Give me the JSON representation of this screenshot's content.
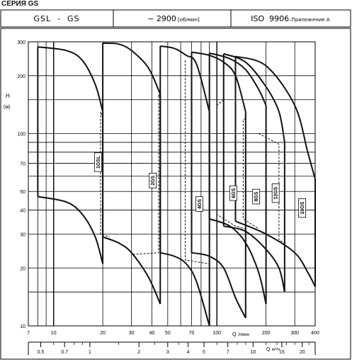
{
  "series_title": "СЕРИЯ GS",
  "header": {
    "model": "GSL  -  GS",
    "speed_prefix": "~ ",
    "speed": "2900",
    "speed_unit": "[об/мин]",
    "standard": "ISO  9906",
    "standard_note": "–Приложение А"
  },
  "chart_data": {
    "type": "line",
    "title": "",
    "ylabel": "H",
    "yunit": "(м)",
    "xlabel": "Q",
    "xunit": "л/мин",
    "x2unit": "м³/ч",
    "y_scale": "log",
    "x_scale": "log",
    "ylim": [
      10,
      300
    ],
    "xlim": [
      7,
      400
    ],
    "x2lim": [
      0.42,
      24
    ],
    "y_ticks": [
      "300",
      "200",
      "100",
      "70",
      "50",
      "40",
      "30",
      "20",
      "10"
    ],
    "y_tick_values": [
      300,
      200,
      100,
      70,
      50,
      40,
      30,
      20,
      10
    ],
    "x_ticks": [
      "7",
      "10",
      "20",
      "30",
      "40",
      "50",
      "70",
      "100",
      "200",
      "300",
      "400"
    ],
    "x_tick_values": [
      7,
      10,
      20,
      30,
      40,
      50,
      70,
      100,
      200,
      300,
      400
    ],
    "x2_ticks": [
      "0.5",
      "0.7",
      "1",
      "2",
      "3",
      "4",
      "5",
      "7",
      "10",
      "15",
      "20"
    ],
    "x2_tick_values": [
      0.5,
      0.7,
      1,
      2,
      3,
      4,
      5,
      7,
      10,
      15,
      20
    ],
    "grid": true,
    "series": [
      {
        "name": "1GSL",
        "upper": [
          [
            8,
            282
          ],
          [
            12,
            270
          ],
          [
            15,
            240
          ],
          [
            18,
            180
          ],
          [
            20,
            130
          ]
        ],
        "lower": [
          [
            8,
            47
          ],
          [
            12,
            44
          ],
          [
            15,
            38
          ],
          [
            18,
            29
          ],
          [
            20,
            21
          ]
        ],
        "qmin": 8,
        "qmax": 20,
        "divider": [
          [
            20,
            120
          ],
          [
            19.4,
            130
          ],
          [
            19.4,
            30
          ],
          [
            22,
            29
          ]
        ],
        "label_q": 18.7,
        "label_h": 71
      },
      {
        "name": "2GS",
        "upper": [
          [
            20,
            295
          ],
          [
            25,
            292
          ],
          [
            30,
            270
          ],
          [
            38,
            220
          ],
          [
            45,
            160
          ]
        ],
        "lower": [
          [
            20,
            29
          ],
          [
            25,
            27
          ],
          [
            30,
            24
          ],
          [
            38,
            18
          ],
          [
            45,
            13
          ]
        ],
        "qmin": 20,
        "qmax": 45,
        "divider": [
          [
            45,
            150
          ],
          [
            44,
            160
          ],
          [
            44,
            24
          ],
          [
            30,
            23.5
          ]
        ],
        "label_q": 40.5,
        "label_h": 57
      },
      {
        "name": "4GS",
        "upper": [
          [
            45,
            285
          ],
          [
            55,
            277
          ],
          [
            65,
            255
          ],
          [
            75,
            230
          ],
          [
            90,
            130
          ]
        ],
        "lower": [
          [
            45,
            24
          ],
          [
            55,
            23
          ],
          [
            65,
            21
          ],
          [
            75,
            17
          ],
          [
            90,
            10
          ]
        ],
        "qmin": 45,
        "qmax": 90,
        "divider": [
          [
            64,
            240
          ],
          [
            64,
            230
          ],
          [
            64,
            22
          ],
          [
            90,
            21
          ]
        ],
        "label_q": 78,
        "label_h": 43
      },
      {
        "name": "6GS",
        "upper": [
          [
            70,
            265
          ],
          [
            90,
            255
          ],
          [
            110,
            235
          ],
          [
            130,
            200
          ],
          [
            150,
            130
          ]
        ],
        "lower": [
          [
            70,
            24
          ],
          [
            90,
            23
          ],
          [
            110,
            20
          ],
          [
            130,
            14
          ],
          [
            150,
            11
          ]
        ],
        "qmin": 70,
        "qmax": 150,
        "divider": [
          [
            110,
            150
          ],
          [
            100,
            140
          ],
          [
            100,
            38
          ],
          [
            130,
            33
          ],
          [
            150,
            32
          ]
        ],
        "label_q": 126,
        "label_h": 49
      },
      {
        "name": "8GS",
        "upper": [
          [
            90,
            262
          ],
          [
            120,
            245
          ],
          [
            150,
            215
          ],
          [
            180,
            170
          ],
          [
            200,
            140
          ]
        ],
        "lower": [
          [
            90,
            36
          ],
          [
            120,
            33
          ],
          [
            150,
            27
          ],
          [
            180,
            19
          ],
          [
            200,
            13
          ]
        ],
        "qmin": 90,
        "qmax": 200,
        "divider": [
          [
            150,
            120
          ],
          [
            145,
            118
          ],
          [
            145,
            36
          ],
          [
            180,
            32
          ]
        ],
        "label_q": 174,
        "label_h": 47
      },
      {
        "name": "12GS",
        "upper": [
          [
            110,
            260
          ],
          [
            150,
            235
          ],
          [
            200,
            175
          ],
          [
            240,
            130
          ],
          [
            260,
            90
          ]
        ],
        "lower": [
          [
            110,
            33
          ],
          [
            150,
            31
          ],
          [
            200,
            25
          ],
          [
            240,
            20
          ],
          [
            260,
            15
          ]
        ],
        "qmin": 110,
        "qmax": 260,
        "divider": [
          [
            180,
            100
          ],
          [
            240,
            88
          ],
          [
            240,
            28
          ],
          [
            260,
            27
          ]
        ],
        "label_q": 229,
        "label_h": 49
      },
      {
        "name": "16GS",
        "upper": [
          [
            130,
            252
          ],
          [
            200,
            225
          ],
          [
            300,
            140
          ],
          [
            360,
            80
          ],
          [
            400,
            58
          ]
        ],
        "lower": [
          [
            130,
            35
          ],
          [
            200,
            30
          ],
          [
            300,
            24
          ],
          [
            360,
            19
          ],
          [
            400,
            16
          ]
        ],
        "qmin": 130,
        "qmax": 400,
        "divider": [],
        "label_q": 333,
        "label_h": 41
      }
    ]
  }
}
